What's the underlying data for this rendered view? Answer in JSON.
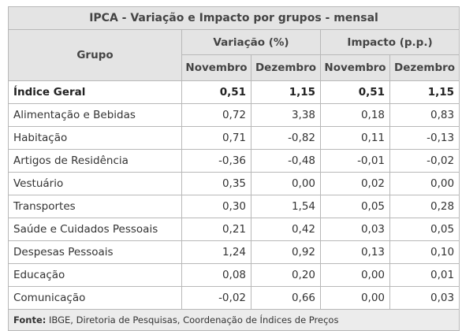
{
  "title": "IPCA - Variação e Impacto por grupos - mensal",
  "headers": {
    "grupo": "Grupo",
    "variacao": "Variação (%)",
    "impacto": "Impacto (p.p.)",
    "novembro": "Novembro",
    "dezembro": "Dezembro"
  },
  "rows": [
    {
      "name": "Índice Geral",
      "var_nov": "0,51",
      "var_dez": "1,15",
      "imp_nov": "0,51",
      "imp_dez": "1,15"
    },
    {
      "name": "Alimentação e Bebidas",
      "var_nov": "0,72",
      "var_dez": "3,38",
      "imp_nov": "0,18",
      "imp_dez": "0,83"
    },
    {
      "name": "Habitação",
      "var_nov": "0,71",
      "var_dez": "-0,82",
      "imp_nov": "0,11",
      "imp_dez": "-0,13"
    },
    {
      "name": "Artigos de Residência",
      "var_nov": "-0,36",
      "var_dez": "-0,48",
      "imp_nov": "-0,01",
      "imp_dez": "-0,02"
    },
    {
      "name": "Vestuário",
      "var_nov": "0,35",
      "var_dez": "0,00",
      "imp_nov": "0,02",
      "imp_dez": "0,00"
    },
    {
      "name": "Transportes",
      "var_nov": "0,30",
      "var_dez": "1,54",
      "imp_nov": "0,05",
      "imp_dez": "0,28"
    },
    {
      "name": "Saúde e Cuidados Pessoais",
      "var_nov": "0,21",
      "var_dez": "0,42",
      "imp_nov": "0,03",
      "imp_dez": "0,05"
    },
    {
      "name": "Despesas Pessoais",
      "var_nov": "1,24",
      "var_dez": "0,92",
      "imp_nov": "0,13",
      "imp_dez": "0,10"
    },
    {
      "name": "Educação",
      "var_nov": "0,08",
      "var_dez": "0,20",
      "imp_nov": "0,00",
      "imp_dez": "0,01"
    },
    {
      "name": "Comunicação",
      "var_nov": "-0,02",
      "var_dez": "0,66",
      "imp_nov": "0,00",
      "imp_dez": "0,03"
    }
  ],
  "footer": {
    "label": "Fonte:",
    "text": " IBGE, Diretoria de Pesquisas, Coordenação de Índices de Preços"
  }
}
